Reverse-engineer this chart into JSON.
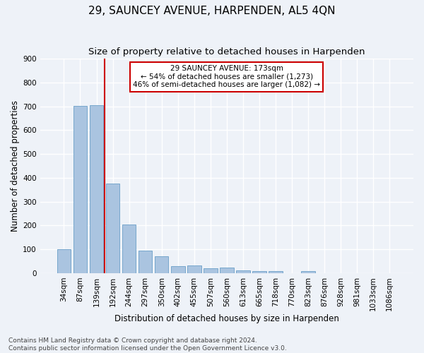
{
  "title": "29, SAUNCEY AVENUE, HARPENDEN, AL5 4QN",
  "subtitle": "Size of property relative to detached houses in Harpenden",
  "xlabel": "Distribution of detached houses by size in Harpenden",
  "ylabel": "Number of detached properties",
  "categories": [
    "34sqm",
    "87sqm",
    "139sqm",
    "192sqm",
    "244sqm",
    "297sqm",
    "350sqm",
    "402sqm",
    "455sqm",
    "507sqm",
    "560sqm",
    "613sqm",
    "665sqm",
    "718sqm",
    "770sqm",
    "823sqm",
    "876sqm",
    "928sqm",
    "981sqm",
    "1033sqm",
    "1086sqm"
  ],
  "values": [
    100,
    703,
    706,
    375,
    205,
    94,
    71,
    29,
    32,
    21,
    22,
    10,
    7,
    7,
    1,
    8,
    0,
    0,
    0,
    0,
    0
  ],
  "bar_color": "#aac4e0",
  "bar_edge_color": "#6a9fc8",
  "vline_x_index": 2.5,
  "vline_color": "#cc0000",
  "annotation_text": "29 SAUNCEY AVENUE: 173sqm\n← 54% of detached houses are smaller (1,273)\n46% of semi-detached houses are larger (1,082) →",
  "annotation_box_color": "#ffffff",
  "annotation_box_edge_color": "#cc0000",
  "ylim": [
    0,
    900
  ],
  "yticks": [
    0,
    100,
    200,
    300,
    400,
    500,
    600,
    700,
    800,
    900
  ],
  "footer_text": "Contains HM Land Registry data © Crown copyright and database right 2024.\nContains public sector information licensed under the Open Government Licence v3.0.",
  "background_color": "#eef2f8",
  "grid_color": "#ffffff",
  "title_fontsize": 11,
  "subtitle_fontsize": 9.5,
  "axis_label_fontsize": 8.5,
  "tick_fontsize": 7.5,
  "footer_fontsize": 6.5,
  "annotation_fontsize": 7.5
}
